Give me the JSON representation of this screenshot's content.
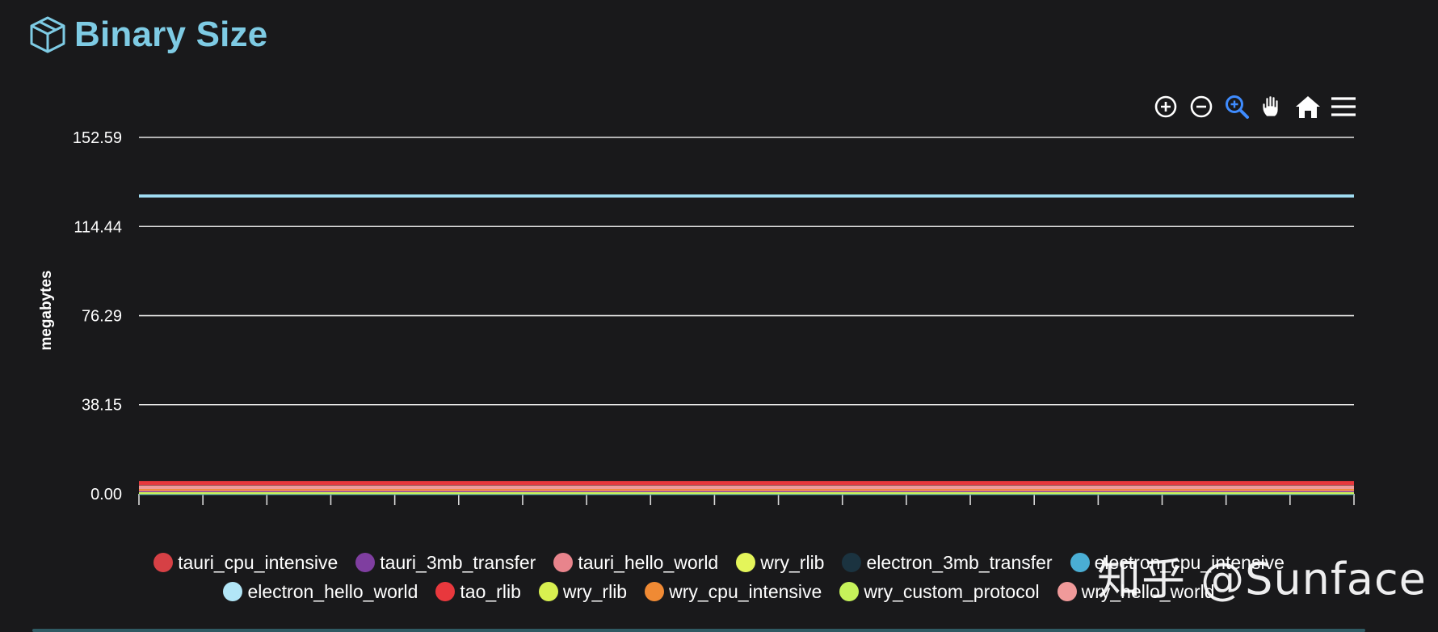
{
  "header": {
    "title": "Binary Size",
    "icon": "cube-icon",
    "accent": "#7ecbe4"
  },
  "toolbar": {
    "tools": [
      {
        "name": "zoom-in-icon",
        "color": "#ffffff"
      },
      {
        "name": "zoom-out-icon",
        "color": "#ffffff"
      },
      {
        "name": "selection-zoom-icon",
        "color": "#3f8cff"
      },
      {
        "name": "pan-hand-icon",
        "color": "#ffffff"
      },
      {
        "name": "reset-home-icon",
        "color": "#ffffff"
      },
      {
        "name": "menu-icon",
        "color": "#ffffff"
      }
    ]
  },
  "chart_data": {
    "type": "line",
    "title": "Binary Size",
    "xlabel": "",
    "ylabel": "megabytes",
    "ylim": [
      0,
      152.59
    ],
    "yticks": [
      "0.00",
      "38.15",
      "76.29",
      "114.44",
      "152.59"
    ],
    "ytick_values": [
      0,
      38.15,
      76.29,
      114.44,
      152.59
    ],
    "x_count": 20,
    "grid": true,
    "legend_position": "bottom",
    "series": [
      {
        "name": "tauri_cpu_intensive",
        "color": "#d64045",
        "legend_color": "#d64045",
        "value": 4.5,
        "draw_order": 6
      },
      {
        "name": "tauri_3mb_transfer",
        "color": "#7f3ea0",
        "legend_color": "#7f3ea0",
        "value": 1.5,
        "draw_order": 2
      },
      {
        "name": "tauri_hello_world",
        "color": "#e8848c",
        "legend_color": "#e8848c",
        "value": 1.8,
        "draw_order": 3
      },
      {
        "name": "wry_rlib",
        "color": "#e4f55a",
        "legend_color": "#e4f55a",
        "value": 0.6,
        "draw_order": 1
      },
      {
        "name": "electron_3mb_transfer",
        "color": "#1b3340",
        "legend_color": "#1b3340",
        "value": 0.2,
        "draw_order": 0
      },
      {
        "name": "electron_cpu_intensive",
        "color": "#4aaed4",
        "legend_color": "#4aaed4",
        "value": 0.3,
        "draw_order": 0
      },
      {
        "name": "electron_hello_world",
        "color": "#9fdcf2",
        "legend_color": "#b2e6f7",
        "value": 127.5,
        "draw_order": 7
      },
      {
        "name": "tao_rlib",
        "color": "#e8383d",
        "legend_color": "#e8383d",
        "value": 4.7,
        "draw_order": 6
      },
      {
        "name": "wry_rlib",
        "color": "#d8f050",
        "legend_color": "#d8f050",
        "value": 0.7,
        "draw_order": 1
      },
      {
        "name": "wry_cpu_intensive",
        "color": "#f08a34",
        "legend_color": "#f08a34",
        "value": 2.2,
        "draw_order": 4
      },
      {
        "name": "wry_custom_protocol",
        "color": "#c6f25a",
        "legend_color": "#c6f25a",
        "value": 0.9,
        "draw_order": 1
      },
      {
        "name": "wry_hello_world",
        "color": "#f09a9a",
        "legend_color": "#f09a9a",
        "value": 2.8,
        "draw_order": 5
      }
    ]
  },
  "legend_rows": [
    [
      0,
      1,
      2,
      3,
      4,
      5
    ],
    [
      6,
      7,
      8,
      9,
      10,
      11
    ]
  ],
  "watermark": "知乎 @Sunface"
}
